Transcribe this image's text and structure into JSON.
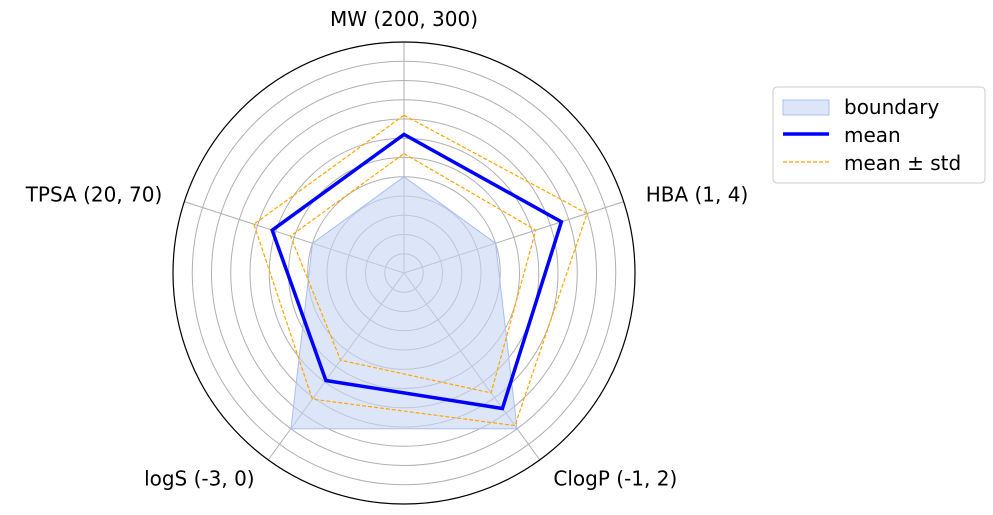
{
  "chart_data": {
    "type": "radar",
    "axes": [
      {
        "label": "MW (200, 300)"
      },
      {
        "label": "HBA (1, 4)"
      },
      {
        "label": "ClogP (-1, 2)"
      },
      {
        "label": "logS (-3, 0)"
      },
      {
        "label": "TPSA (20, 70)"
      }
    ],
    "r_range": [
      0,
      1.2
    ],
    "grid_rings": [
      0.1,
      0.2,
      0.3,
      0.4,
      0.5,
      0.6,
      0.7,
      0.8,
      0.9,
      1.0,
      1.1
    ],
    "grid": true,
    "series": [
      {
        "name": "boundary",
        "kind": "fill",
        "values": [
          0.5,
          0.5,
          1.0,
          1.0,
          0.5
        ]
      },
      {
        "name": "mean",
        "kind": "line",
        "values": [
          0.72,
          0.86,
          0.87,
          0.69,
          0.72
        ]
      },
      {
        "name": "mean ± std",
        "kind": "dashed",
        "values": [
          0.82,
          1.0,
          0.98,
          0.81,
          0.82
        ]
      },
      {
        "name": "mean ± std",
        "kind": "dashed",
        "values": [
          0.62,
          0.72,
          0.77,
          0.56,
          0.62
        ]
      }
    ],
    "legend": {
      "position": "right",
      "entries": [
        "boundary",
        "mean",
        "mean ± std"
      ]
    }
  },
  "colors": {
    "boundary_fill": "#c6d5f5",
    "boundary_edge": "#aabff0",
    "mean": "#0000ff",
    "std": "#ffa500",
    "grid": "#b0b0b0",
    "frame": "#000000"
  }
}
